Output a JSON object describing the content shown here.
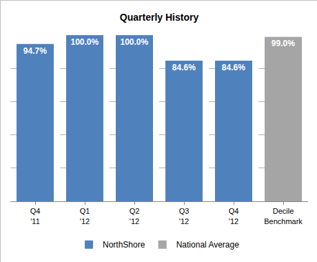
{
  "chart_data": {
    "type": "bar",
    "title": "Quarterly History",
    "categories": [
      "Q4 '11",
      "Q1 '12",
      "Q2 '12",
      "Q3 '12",
      "Q4 '12",
      "Decile Benchmark"
    ],
    "series": [
      {
        "name": "NorthShore",
        "color": "#4f81bd",
        "values": [
          94.7,
          100.0,
          100.0,
          84.6,
          84.6,
          null
        ],
        "value_labels": [
          "94.7%",
          "100.0%",
          "100.0%",
          "84.6%",
          "84.6%",
          null
        ]
      },
      {
        "name": "National Average",
        "color": "#a5a5a5",
        "values": [
          null,
          null,
          null,
          null,
          null,
          99.0
        ],
        "value_labels": [
          null,
          null,
          null,
          null,
          null,
          "99.0%"
        ]
      }
    ],
    "ylim": [
      0,
      100
    ],
    "yticks": [
      0,
      20,
      40,
      60,
      80,
      100
    ],
    "grid": true,
    "legend": "bottom",
    "data_labels": true,
    "tick_labels": "x"
  }
}
